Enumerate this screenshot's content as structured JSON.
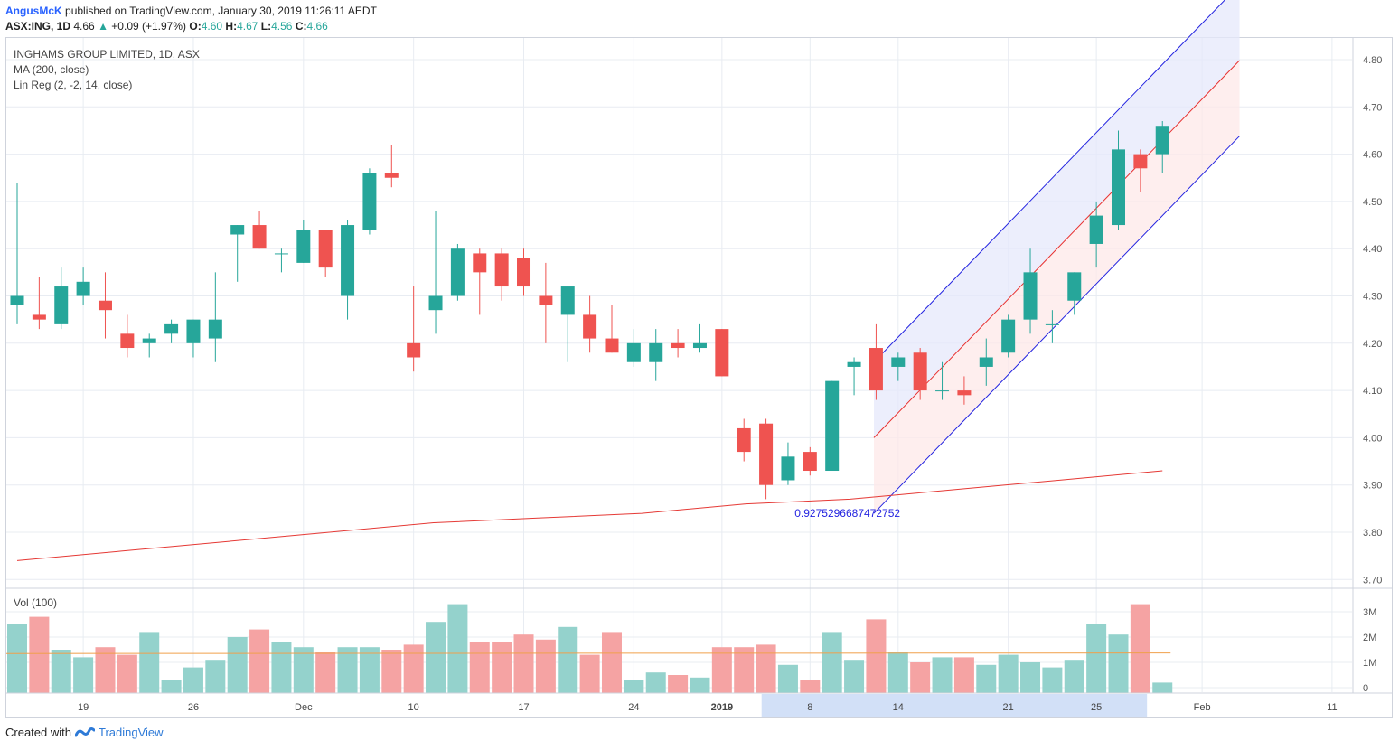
{
  "header": {
    "author": "AngusMcK",
    "published": "published on TradingView.com, January 30, 2019 11:26:11 AEDT",
    "symbol": "ASX:ING, 1D",
    "last": "4.66",
    "change": "+0.09 (+1.97%)",
    "o_label": "O:",
    "o_value": "4.60",
    "h_label": "H:",
    "h_value": "4.67",
    "l_label": "L:",
    "l_value": "4.56",
    "c_label": "C:",
    "c_value": "4.66"
  },
  "legend": {
    "title": "INGHAMS GROUP LIMITED, 1D, ASX",
    "ma": "MA (200, close)",
    "linreg": "Lin Reg (2, -2, 14, close)"
  },
  "volume_panel": {
    "label": "Vol (100)"
  },
  "footer": {
    "created_with": "Created with",
    "brand": "TradingView"
  },
  "colors": {
    "up": "#26a69a",
    "down": "#ef5350",
    "vol_up": "#94d2cc",
    "vol_down": "#f5a3a3",
    "ma": "#e53935",
    "channel": "#2323e0",
    "regline": "#e8302f",
    "vol_ma": "#f0a04b",
    "grid": "#e8ecf2",
    "range_highlight": "#d2e0f7"
  },
  "chart_data": {
    "type": "candlestick",
    "y_axis": {
      "ticks": [
        "4.80",
        "4.70",
        "4.60",
        "4.50",
        "4.40",
        "4.30",
        "4.20",
        "4.10",
        "4.00",
        "3.90",
        "3.80",
        "3.70"
      ],
      "range": [
        3.67,
        4.84
      ]
    },
    "x_axis": {
      "ticks": [
        "19",
        "26",
        "Dec",
        "10",
        "17",
        "24",
        "2019",
        "8",
        "14",
        "21",
        "25",
        "Feb",
        "11"
      ]
    },
    "volume_axis": {
      "ticks": [
        "3M",
        "2M",
        "1M",
        "0"
      ],
      "range": [
        0,
        3.5
      ]
    },
    "candles": [
      {
        "o": 4.28,
        "h": 4.54,
        "l": 4.24,
        "c": 4.3,
        "v": 2.5
      },
      {
        "o": 4.26,
        "h": 4.34,
        "l": 4.23,
        "c": 4.25,
        "v": 2.8
      },
      {
        "o": 4.24,
        "h": 4.36,
        "l": 4.23,
        "c": 4.32,
        "v": 1.5
      },
      {
        "o": 4.3,
        "h": 4.36,
        "l": 4.28,
        "c": 4.33,
        "v": 1.2
      },
      {
        "o": 4.29,
        "h": 4.35,
        "l": 4.21,
        "c": 4.27,
        "v": 1.6
      },
      {
        "o": 4.22,
        "h": 4.26,
        "l": 4.17,
        "c": 4.19,
        "v": 1.3
      },
      {
        "o": 4.2,
        "h": 4.22,
        "l": 4.17,
        "c": 4.21,
        "v": 2.2
      },
      {
        "o": 4.22,
        "h": 4.25,
        "l": 4.2,
        "c": 4.24,
        "v": 0.3
      },
      {
        "o": 4.2,
        "h": 4.25,
        "l": 4.17,
        "c": 4.25,
        "v": 0.8
      },
      {
        "o": 4.21,
        "h": 4.35,
        "l": 4.16,
        "c": 4.25,
        "v": 1.1
      },
      {
        "o": 4.43,
        "h": 4.45,
        "l": 4.33,
        "c": 4.45,
        "v": 2.0
      },
      {
        "o": 4.45,
        "h": 4.48,
        "l": 4.4,
        "c": 4.4,
        "v": 2.3
      },
      {
        "o": 4.39,
        "h": 4.4,
        "l": 4.35,
        "c": 4.39,
        "v": 1.8
      },
      {
        "o": 4.37,
        "h": 4.46,
        "l": 4.37,
        "c": 4.44,
        "v": 1.6
      },
      {
        "o": 4.44,
        "h": 4.44,
        "l": 4.34,
        "c": 4.36,
        "v": 1.4
      },
      {
        "o": 4.3,
        "h": 4.46,
        "l": 4.25,
        "c": 4.45,
        "v": 1.6
      },
      {
        "o": 4.44,
        "h": 4.57,
        "l": 4.43,
        "c": 4.56,
        "v": 1.6
      },
      {
        "o": 4.56,
        "h": 4.62,
        "l": 4.53,
        "c": 4.55,
        "v": 1.5
      },
      {
        "o": 4.2,
        "h": 4.32,
        "l": 4.14,
        "c": 4.17,
        "v": 1.7
      },
      {
        "o": 4.27,
        "h": 4.48,
        "l": 4.22,
        "c": 4.3,
        "v": 2.6
      },
      {
        "o": 4.3,
        "h": 4.41,
        "l": 4.29,
        "c": 4.4,
        "v": 3.3
      },
      {
        "o": 4.39,
        "h": 4.4,
        "l": 4.26,
        "c": 4.35,
        "v": 1.8
      },
      {
        "o": 4.39,
        "h": 4.4,
        "l": 4.29,
        "c": 4.32,
        "v": 1.8
      },
      {
        "o": 4.38,
        "h": 4.4,
        "l": 4.3,
        "c": 4.32,
        "v": 2.1
      },
      {
        "o": 4.3,
        "h": 4.37,
        "l": 4.2,
        "c": 4.28,
        "v": 1.9
      },
      {
        "o": 4.26,
        "h": 4.32,
        "l": 4.16,
        "c": 4.32,
        "v": 2.4
      },
      {
        "o": 4.26,
        "h": 4.3,
        "l": 4.18,
        "c": 4.21,
        "v": 1.3
      },
      {
        "o": 4.21,
        "h": 4.28,
        "l": 4.18,
        "c": 4.18,
        "v": 2.2
      },
      {
        "o": 4.16,
        "h": 4.23,
        "l": 4.15,
        "c": 4.2,
        "v": 0.3
      },
      {
        "o": 4.16,
        "h": 4.23,
        "l": 4.12,
        "c": 4.2,
        "v": 0.6
      },
      {
        "o": 4.2,
        "h": 4.23,
        "l": 4.17,
        "c": 4.19,
        "v": 0.5
      },
      {
        "o": 4.19,
        "h": 4.24,
        "l": 4.18,
        "c": 4.2,
        "v": 0.4
      },
      {
        "o": 4.23,
        "h": 4.23,
        "l": 4.13,
        "c": 4.13,
        "v": 1.6
      },
      {
        "o": 4.02,
        "h": 4.04,
        "l": 3.95,
        "c": 3.97,
        "v": 1.6
      },
      {
        "o": 4.03,
        "h": 4.04,
        "l": 3.87,
        "c": 3.9,
        "v": 1.7
      },
      {
        "o": 3.91,
        "h": 3.99,
        "l": 3.9,
        "c": 3.96,
        "v": 0.9
      },
      {
        "o": 3.97,
        "h": 3.98,
        "l": 3.92,
        "c": 3.93,
        "v": 0.3
      },
      {
        "o": 3.93,
        "h": 4.12,
        "l": 3.93,
        "c": 4.12,
        "v": 2.2
      },
      {
        "o": 4.15,
        "h": 4.17,
        "l": 4.09,
        "c": 4.16,
        "v": 1.1
      },
      {
        "o": 4.19,
        "h": 4.24,
        "l": 4.08,
        "c": 4.1,
        "v": 2.7
      },
      {
        "o": 4.15,
        "h": 4.18,
        "l": 4.12,
        "c": 4.17,
        "v": 1.4
      },
      {
        "o": 4.18,
        "h": 4.19,
        "l": 4.08,
        "c": 4.1,
        "v": 1.0
      },
      {
        "o": 4.1,
        "h": 4.16,
        "l": 4.08,
        "c": 4.1,
        "v": 1.2
      },
      {
        "o": 4.1,
        "h": 4.13,
        "l": 4.07,
        "c": 4.09,
        "v": 1.2
      },
      {
        "o": 4.15,
        "h": 4.21,
        "l": 4.11,
        "c": 4.17,
        "v": 0.9
      },
      {
        "o": 4.18,
        "h": 4.26,
        "l": 4.17,
        "c": 4.25,
        "v": 1.3
      },
      {
        "o": 4.25,
        "h": 4.4,
        "l": 4.22,
        "c": 4.35,
        "v": 1.0
      },
      {
        "o": 4.24,
        "h": 4.27,
        "l": 4.2,
        "c": 4.24,
        "v": 0.8
      },
      {
        "o": 4.29,
        "h": 4.35,
        "l": 4.26,
        "c": 4.35,
        "v": 1.1
      },
      {
        "o": 4.41,
        "h": 4.5,
        "l": 4.36,
        "c": 4.47,
        "v": 2.5
      },
      {
        "o": 4.45,
        "h": 4.65,
        "l": 4.44,
        "c": 4.61,
        "v": 2.1
      },
      {
        "o": 4.6,
        "h": 4.61,
        "l": 4.52,
        "c": 4.57,
        "v": 3.3
      },
      {
        "o": 4.6,
        "h": 4.67,
        "l": 4.56,
        "c": 4.66,
        "v": 0.2
      }
    ],
    "ma200": {
      "name": "MA (200, close)",
      "values": [
        3.74,
        3.76,
        3.78,
        3.8,
        3.82,
        3.83,
        3.84,
        3.86,
        3.87,
        3.89,
        3.91,
        3.93
      ]
    },
    "vol_ma": 1.35,
    "regression": {
      "name": "Lin Reg (2, -2, 14, close)",
      "start_value": 4.0,
      "end_value": 4.63,
      "upper_offset": 0.16,
      "lower_offset": -0.16,
      "label": "0.9275296687472752"
    },
    "x_range_highlight": {
      "from": "2019",
      "to": "Feb"
    }
  }
}
